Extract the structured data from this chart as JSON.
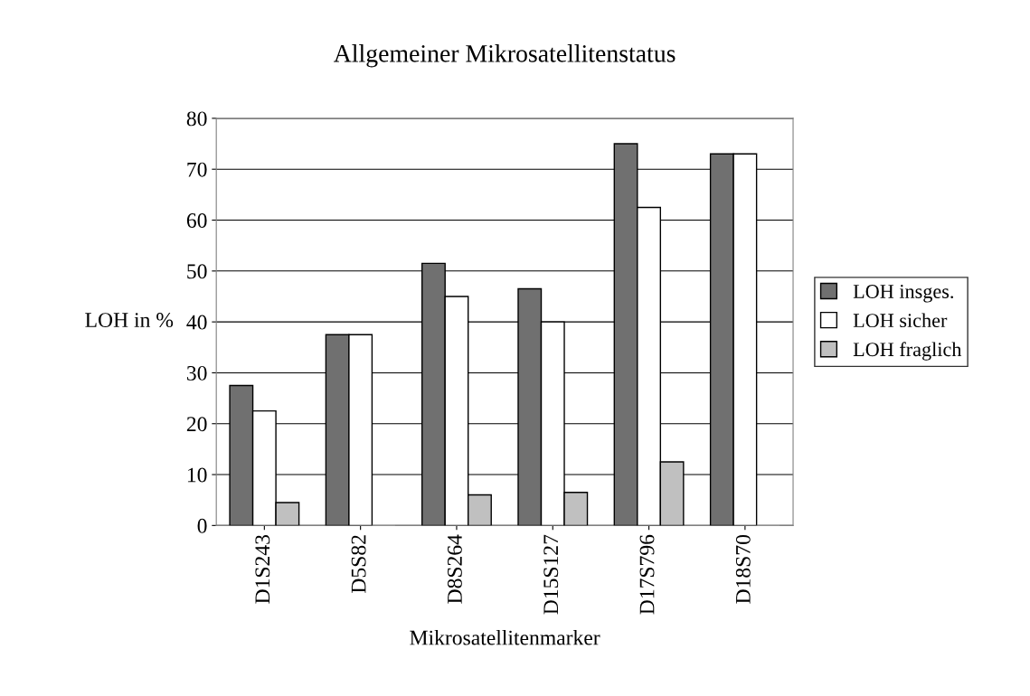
{
  "chart_data": {
    "type": "bar",
    "title": "Allgemeiner Mikrosatellitenstatus",
    "xlabel": "Mikrosatellitenmarker",
    "ylabel": "LOH in %",
    "categories": [
      "D1S243",
      "D5S82",
      "D8S264",
      "D15S127",
      "D17S796",
      "D18S70"
    ],
    "series": [
      {
        "name": "LOH insges.",
        "color": "#707070",
        "values": [
          27.5,
          37.5,
          51.5,
          46.5,
          75,
          73
        ]
      },
      {
        "name": "LOH sicher",
        "color": "#ffffff",
        "values": [
          22.5,
          37.5,
          45,
          40,
          62.5,
          73
        ]
      },
      {
        "name": "LOH fraglich",
        "color": "#c0c0c0",
        "values": [
          4.5,
          0,
          6,
          6.5,
          12.5,
          0
        ]
      }
    ],
    "ylim": [
      0,
      80
    ],
    "yticks": [
      0,
      10,
      20,
      30,
      40,
      50,
      60,
      70,
      80
    ],
    "grid": "y",
    "legend": "right"
  }
}
